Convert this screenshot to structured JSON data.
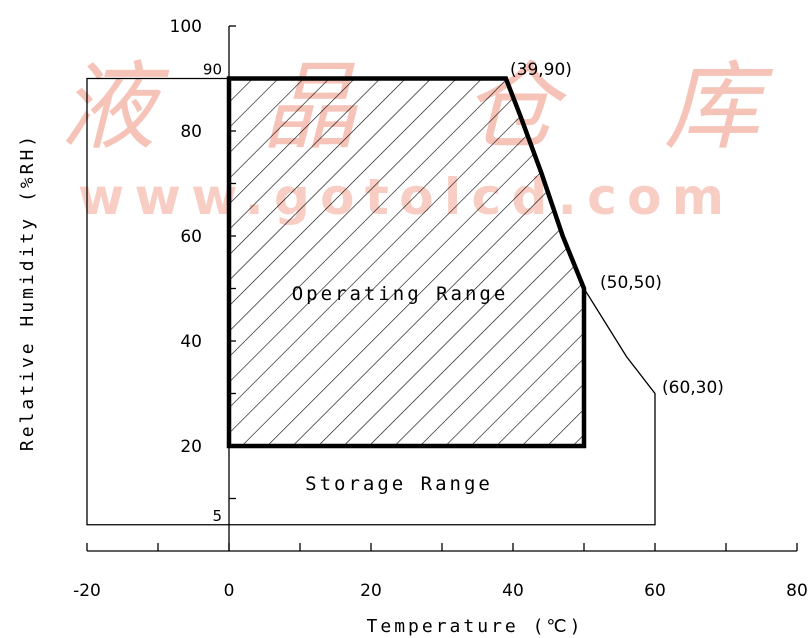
{
  "chart_data": {
    "type": "area",
    "xlabel": "Temperature (℃)",
    "ylabel": "Relative Humidity (%RH)",
    "xlim": [
      -20,
      80
    ],
    "ylim": [
      0,
      100
    ],
    "x_ticks": [
      "-20",
      "0",
      "20",
      "40",
      "60",
      "80"
    ],
    "y_ticks": [
      "20",
      "40",
      "60",
      "80",
      "100"
    ],
    "reference_lines": [
      {
        "label": "90",
        "y": 90
      },
      {
        "label": "5",
        "y": 5
      }
    ],
    "series": [
      {
        "name": "Storage Range",
        "points": [
          [
            -20,
            5
          ],
          [
            -20,
            90
          ],
          [
            39,
            90
          ],
          [
            41,
            83
          ],
          [
            44,
            72
          ],
          [
            47,
            60
          ],
          [
            50,
            50
          ],
          [
            56,
            37
          ],
          [
            60,
            30
          ],
          [
            60,
            5
          ]
        ]
      },
      {
        "name": "Operating Range",
        "points": [
          [
            0,
            20
          ],
          [
            0,
            90
          ],
          [
            39,
            90
          ],
          [
            41,
            83
          ],
          [
            44,
            72
          ],
          [
            47,
            60
          ],
          [
            50,
            50
          ],
          [
            50,
            20
          ]
        ],
        "hatched": true
      }
    ],
    "annotations": [
      "(39,90)",
      "(50,50)",
      "(60,30)"
    ],
    "grid": false
  },
  "watermark": {
    "cjk": "液 晶 仓 库",
    "url": "www.gotolcd.com",
    "color": "#f6c3b8"
  }
}
